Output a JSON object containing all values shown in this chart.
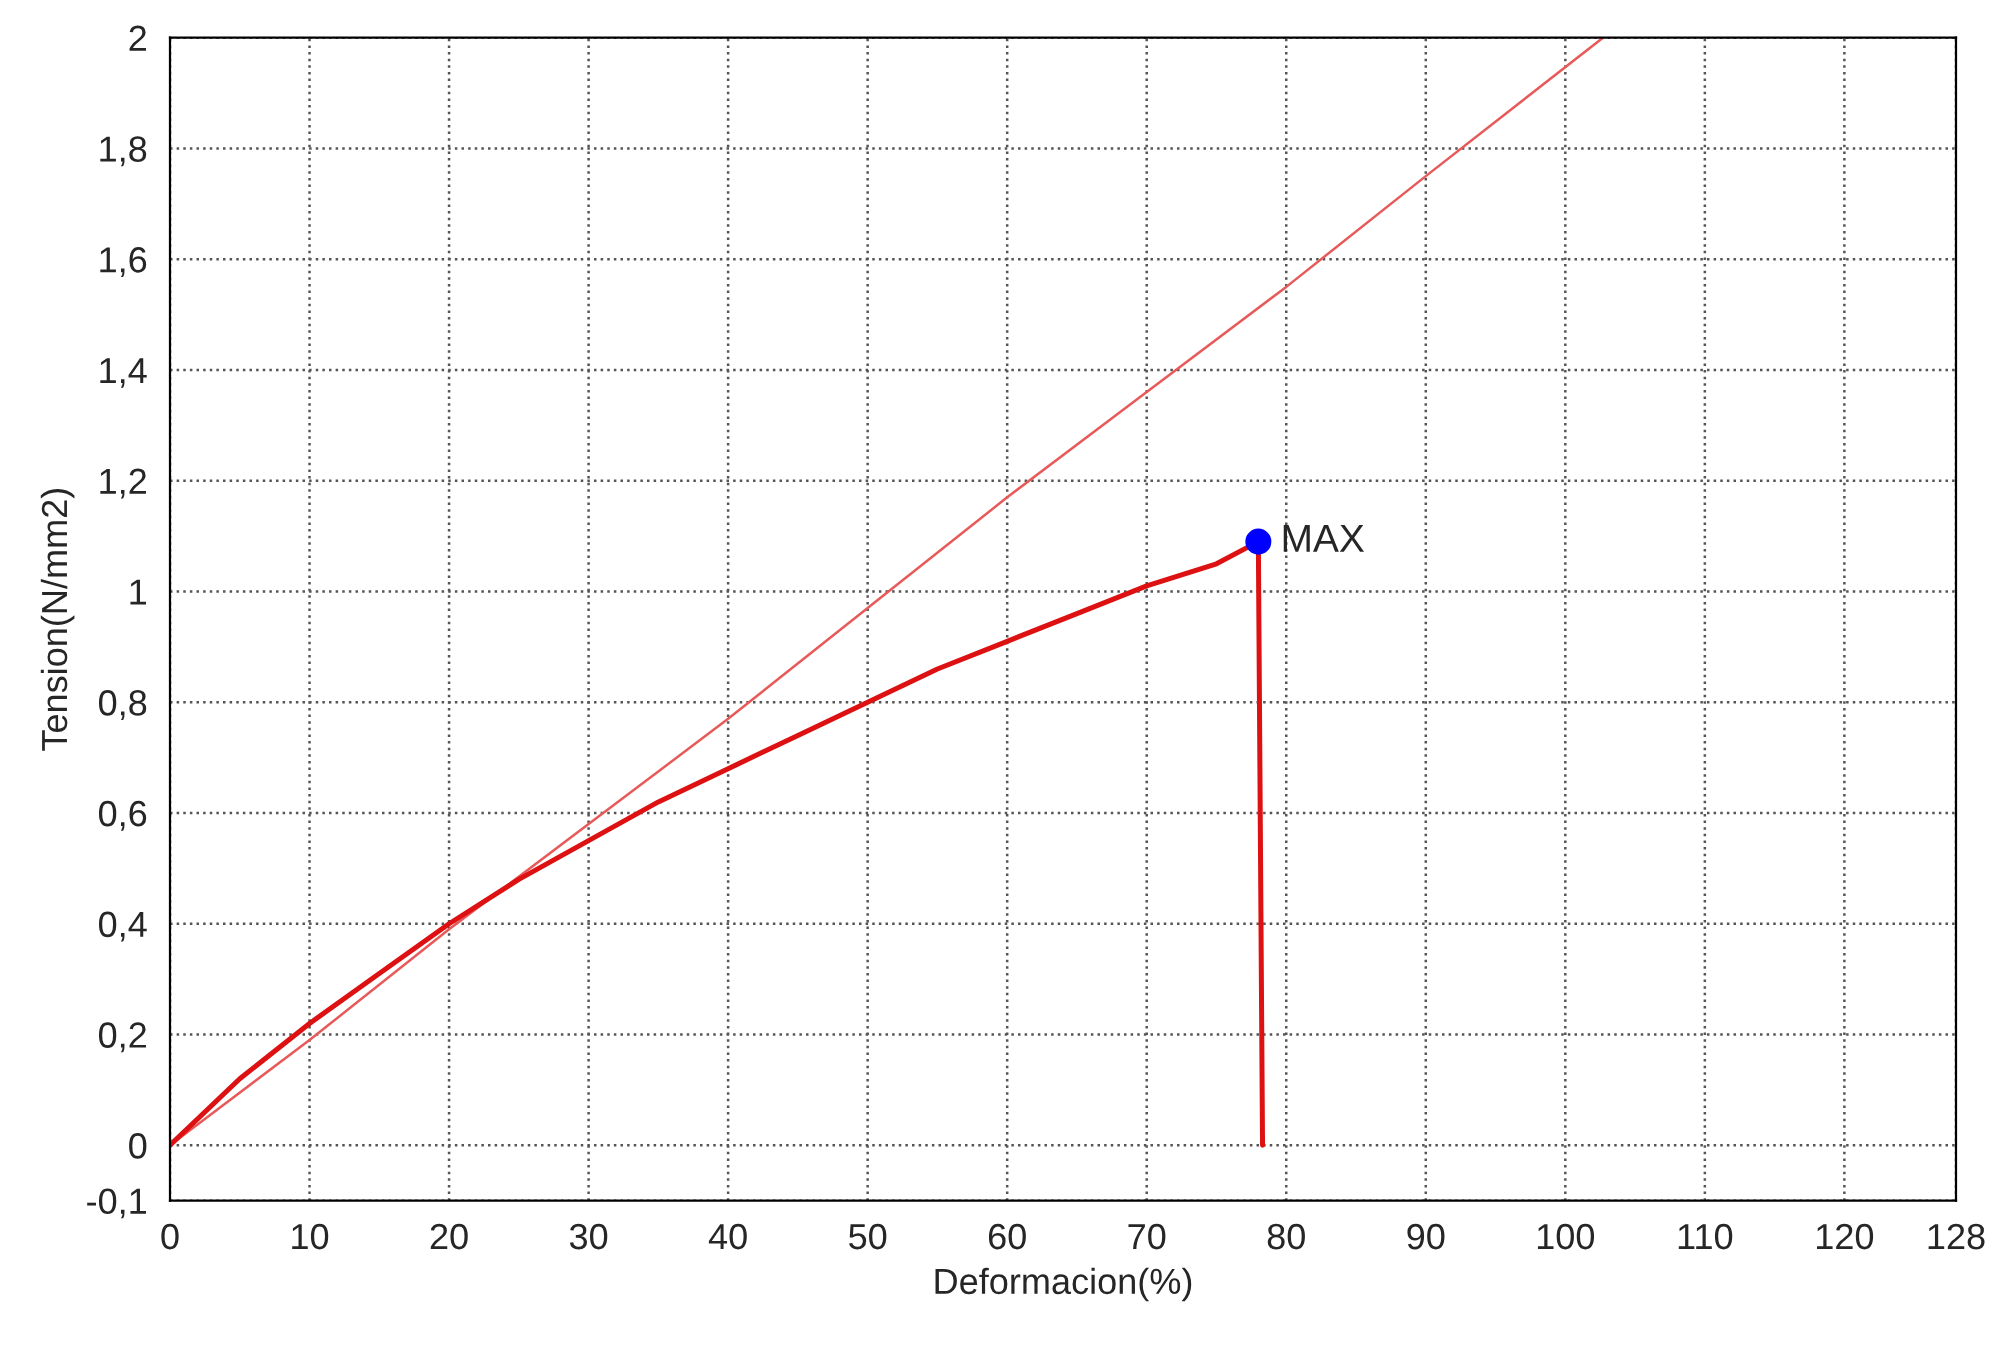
{
  "chart_data": {
    "type": "line",
    "xlabel": "Deformacion(%)",
    "ylabel": "Tension(N/mm2)",
    "series": [
      {
        "color": "#e85a5a",
        "x": [
          0,
          10,
          20,
          30,
          40,
          50,
          60,
          70,
          80,
          90,
          102.7
        ],
        "values": [
          0,
          0.19,
          0.39,
          0.58,
          0.77,
          0.97,
          1.17,
          1.36,
          1.55,
          1.75,
          2
        ]
      },
      {
        "color": "#dd1111",
        "x": [
          0,
          5,
          10,
          15,
          20,
          25,
          30,
          35,
          40,
          45,
          50,
          55,
          60,
          65,
          70,
          75,
          78,
          78.3
        ],
        "values": [
          0,
          0.12,
          0.22,
          0.31,
          0.4,
          0.48,
          0.55,
          0.62,
          0.68,
          0.74,
          0.8,
          0.86,
          0.91,
          0.96,
          1.01,
          1.05,
          1.09,
          0
        ]
      },
      {
        "type": "scatter",
        "marker": "circle",
        "color": "#0000ff",
        "x": [
          78
        ],
        "values": [
          1.09
        ]
      }
    ],
    "annotations": [
      {
        "text": "MAX",
        "x": 78,
        "y": 1.09
      }
    ],
    "xlim": [
      0,
      128
    ],
    "xticks": [
      0,
      10,
      20,
      30,
      40,
      50,
      60,
      70,
      80,
      90,
      100,
      110,
      120,
      128
    ],
    "ylim": [
      -0.1,
      2
    ],
    "yticks": [
      {
        "value": -0.1,
        "label": "-0,1"
      },
      0,
      {
        "value": 0.2,
        "label": "0,2"
      },
      {
        "value": 0.4,
        "label": "0,4"
      },
      {
        "value": 0.6,
        "label": "0,6"
      },
      {
        "value": 0.8,
        "label": "0,8"
      },
      1,
      {
        "value": 1.2,
        "label": "1,2"
      },
      {
        "value": 1.4,
        "label": "1,4"
      },
      {
        "value": 1.6,
        "label": "1,6"
      },
      {
        "value": 1.8,
        "label": "1,8"
      },
      2
    ],
    "grid": true,
    "line_style": "solid"
  }
}
